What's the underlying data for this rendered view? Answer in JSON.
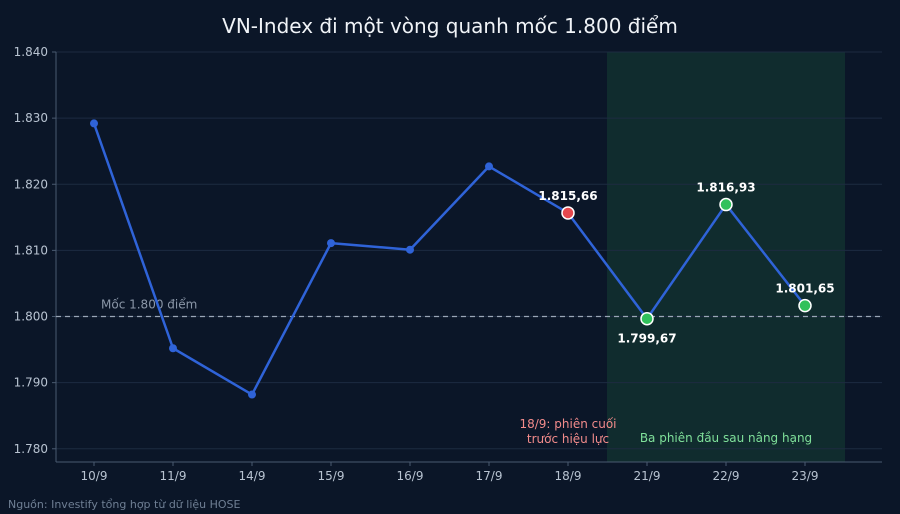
{
  "chart_data": {
    "type": "line",
    "title": "VN-Index đi một vòng quanh mốc 1.800 điểm",
    "categories": [
      "10/9",
      "11/9",
      "14/9",
      "15/9",
      "16/9",
      "17/9",
      "18/9",
      "21/9",
      "22/9",
      "23/9"
    ],
    "series": [
      {
        "values": [
          1829.2,
          1795.2,
          1788.2,
          1811.1,
          1810.1,
          1822.7,
          1815.66,
          1799.67,
          1816.93,
          1801.65
        ]
      }
    ],
    "ylim": [
      1778,
      1840
    ],
    "yticks": [
      1780,
      1790,
      1800,
      1810,
      1820,
      1830,
      1840
    ],
    "ytick_labels": [
      "1.780",
      "1.790",
      "1.800",
      "1.810",
      "1.820",
      "1.830",
      "1.840"
    ],
    "reference_line": {
      "value": 1800,
      "label": "Mốc 1.800 điểm"
    },
    "highlight_region": {
      "from_category": "21/9",
      "to_category": "23/9",
      "label": "Ba phiên đầu sau nâng hạng"
    },
    "point_labels": [
      {
        "index": 6,
        "text": "1.815,66"
      },
      {
        "index": 7,
        "text": "1.799,67"
      },
      {
        "index": 8,
        "text": "1.816,93"
      },
      {
        "index": 9,
        "text": "1.801,65"
      }
    ],
    "annotation": {
      "index": 6,
      "lines": [
        "18/9: phiên cuối",
        "trước hiệu lực"
      ]
    },
    "grid": true,
    "colors": {
      "line": "#2f63d8",
      "highlight_before": "#e5484d",
      "highlight_after": "#31c15b",
      "annotation": "#f28b8b",
      "region_label": "#7fe09a"
    }
  },
  "source": "Nguồn: Investify tổng hợp từ dữ liệu HOSE"
}
